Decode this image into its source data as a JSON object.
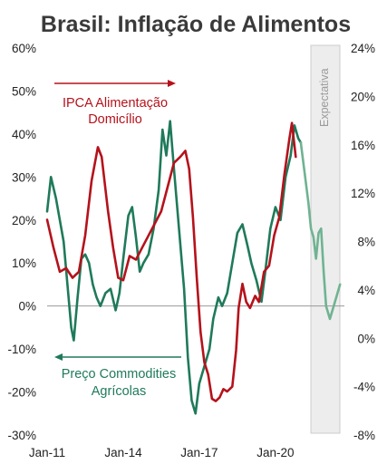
{
  "chart_data": {
    "type": "line",
    "title": "Brasil: Inflação de Alimentos",
    "x_ticks": [
      "Jan-11",
      "Jan-14",
      "Jan-17",
      "Jan-20"
    ],
    "left_axis": {
      "ticks": [
        "-30%",
        "-20%",
        "-10%",
        "0%",
        "10%",
        "20%",
        "30%",
        "40%",
        "50%",
        "60%"
      ],
      "ylim": [
        -30,
        60
      ]
    },
    "right_axis": {
      "ticks": [
        "-8%",
        "-4%",
        "0%",
        "4%",
        "8%",
        "12%",
        "16%",
        "20%",
        "24%"
      ],
      "ylim": [
        -8,
        24
      ]
    },
    "annotations": {
      "red_line1": "IPCA Alimentação",
      "red_line2": "Domicílio",
      "green_line1": "Preço Commodities",
      "green_line2": "Agrícolas",
      "forecast": "Expectativa"
    },
    "colors": {
      "ipca": "#b5121b",
      "commodities": "#1f7a5a",
      "forecast": "#6fb392",
      "shade": "#ededed"
    },
    "series": [
      {
        "axis": "right",
        "values": [
          [
            2011.0,
            9.8
          ],
          [
            2011.25,
            7.5
          ],
          [
            2011.5,
            5.5
          ],
          [
            2011.75,
            5.8
          ],
          [
            2012.0,
            5.0
          ],
          [
            2012.25,
            5.5
          ],
          [
            2012.5,
            8.5
          ],
          [
            2012.75,
            13.0
          ],
          [
            2013.0,
            15.8
          ],
          [
            2013.15,
            15.0
          ],
          [
            2013.4,
            10.5
          ],
          [
            2013.6,
            7.5
          ],
          [
            2013.8,
            5.0
          ],
          [
            2014.0,
            4.8
          ],
          [
            2014.25,
            6.8
          ],
          [
            2014.5,
            6.5
          ],
          [
            2014.75,
            7.5
          ],
          [
            2015.0,
            8.5
          ],
          [
            2015.25,
            9.5
          ],
          [
            2015.5,
            10.5
          ],
          [
            2015.75,
            12.5
          ],
          [
            2016.0,
            14.5
          ],
          [
            2016.25,
            15.0
          ],
          [
            2016.45,
            15.5
          ],
          [
            2016.6,
            14.0
          ],
          [
            2016.75,
            10.0
          ],
          [
            2016.9,
            5.0
          ],
          [
            2017.05,
            0.5
          ],
          [
            2017.2,
            -2.0
          ],
          [
            2017.35,
            -3.0
          ],
          [
            2017.5,
            -5.0
          ],
          [
            2017.65,
            -5.2
          ],
          [
            2017.8,
            -4.9
          ],
          [
            2017.95,
            -4.2
          ],
          [
            2018.1,
            -4.4
          ],
          [
            2018.3,
            -4.0
          ],
          [
            2018.45,
            -1.0
          ],
          [
            2018.55,
            2.5
          ],
          [
            2018.7,
            4.5
          ],
          [
            2018.85,
            3.0
          ],
          [
            2019.0,
            2.5
          ],
          [
            2019.2,
            3.5
          ],
          [
            2019.35,
            3.0
          ],
          [
            2019.55,
            5.5
          ],
          [
            2019.75,
            6.0
          ],
          [
            2019.95,
            8.5
          ],
          [
            2020.15,
            10.0
          ],
          [
            2020.35,
            13.5
          ],
          [
            2020.55,
            16.5
          ],
          [
            2020.65,
            17.8
          ],
          [
            2020.8,
            15.0
          ]
        ]
      },
      {
        "axis": "left",
        "values": [
          [
            2011.0,
            22
          ],
          [
            2011.15,
            30
          ],
          [
            2011.35,
            25
          ],
          [
            2011.5,
            20
          ],
          [
            2011.65,
            15
          ],
          [
            2011.8,
            5
          ],
          [
            2011.95,
            -5
          ],
          [
            2012.05,
            -8
          ],
          [
            2012.2,
            2
          ],
          [
            2012.35,
            11
          ],
          [
            2012.5,
            12
          ],
          [
            2012.65,
            10
          ],
          [
            2012.8,
            5
          ],
          [
            2012.95,
            2
          ],
          [
            2013.1,
            0
          ],
          [
            2013.3,
            3
          ],
          [
            2013.5,
            4
          ],
          [
            2013.7,
            -1
          ],
          [
            2013.85,
            3
          ],
          [
            2014.0,
            11
          ],
          [
            2014.2,
            21
          ],
          [
            2014.35,
            23
          ],
          [
            2014.5,
            16
          ],
          [
            2014.65,
            8
          ],
          [
            2014.8,
            10
          ],
          [
            2015.0,
            12
          ],
          [
            2015.2,
            18
          ],
          [
            2015.4,
            27
          ],
          [
            2015.55,
            41
          ],
          [
            2015.7,
            35
          ],
          [
            2015.85,
            43
          ],
          [
            2016.0,
            32
          ],
          [
            2016.2,
            18
          ],
          [
            2016.4,
            4
          ],
          [
            2016.55,
            -12
          ],
          [
            2016.7,
            -22
          ],
          [
            2016.85,
            -25
          ],
          [
            2017.0,
            -18
          ],
          [
            2017.2,
            -14
          ],
          [
            2017.4,
            -10
          ],
          [
            2017.55,
            -3
          ],
          [
            2017.75,
            2
          ],
          [
            2017.9,
            0
          ],
          [
            2018.1,
            3
          ],
          [
            2018.3,
            10
          ],
          [
            2018.5,
            17
          ],
          [
            2018.7,
            19
          ],
          [
            2018.9,
            14
          ],
          [
            2019.05,
            10
          ],
          [
            2019.25,
            6
          ],
          [
            2019.45,
            1
          ],
          [
            2019.6,
            8
          ],
          [
            2019.8,
            18
          ],
          [
            2020.0,
            23
          ],
          [
            2020.2,
            20
          ],
          [
            2020.4,
            30
          ],
          [
            2020.6,
            35
          ],
          [
            2020.75,
            42
          ],
          [
            2020.9,
            39
          ],
          [
            2021.0,
            38
          ]
        ]
      },
      {
        "axis": "left",
        "values": [
          [
            2021.0,
            38
          ],
          [
            2021.15,
            31
          ],
          [
            2021.3,
            24
          ],
          [
            2021.4,
            18
          ],
          [
            2021.5,
            16
          ],
          [
            2021.6,
            11
          ],
          [
            2021.7,
            17
          ],
          [
            2021.8,
            18
          ],
          [
            2021.9,
            8
          ],
          [
            2022.0,
            0
          ],
          [
            2022.15,
            -3
          ],
          [
            2022.3,
            0
          ],
          [
            2022.45,
            3
          ],
          [
            2022.55,
            5
          ]
        ]
      }
    ]
  }
}
